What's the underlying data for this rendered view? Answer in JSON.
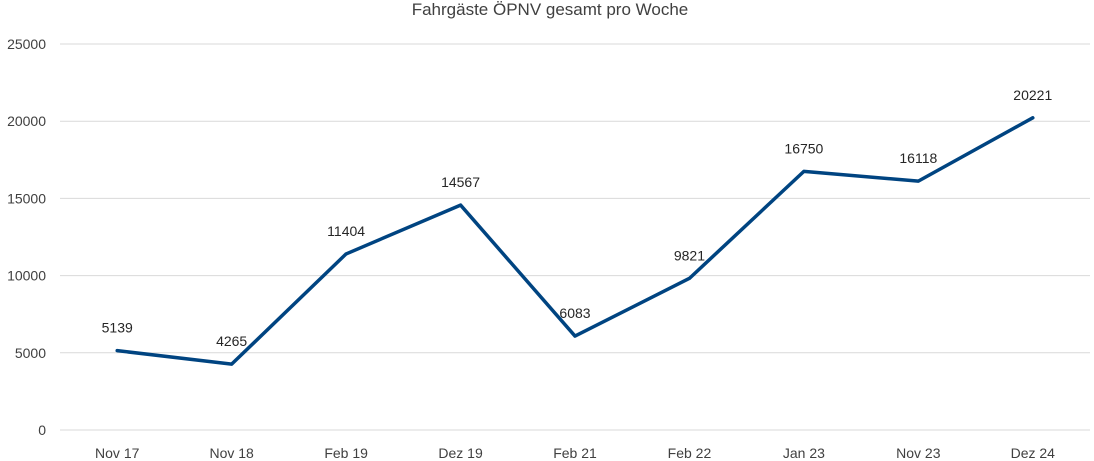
{
  "chart_data": {
    "type": "line",
    "title": "Fahrgäste ÖPNV gesamt pro Woche",
    "xlabel": "",
    "ylabel": "",
    "categories": [
      "Nov 17",
      "Nov 18",
      "Feb 19",
      "Dez 19",
      "Feb 21",
      "Feb 22",
      "Jan 23",
      "Nov 23",
      "Dez 24"
    ],
    "series": [
      {
        "values": [
          5139,
          4265,
          11404,
          14567,
          6083,
          9821,
          16750,
          16118,
          20221
        ],
        "color": "#004481"
      }
    ],
    "ylim": [
      0,
      25000
    ],
    "yticks": [
      "0",
      "5000",
      "10000",
      "15000",
      "20000",
      "25000"
    ],
    "grid": true,
    "legend": "none",
    "data_labels": true
  }
}
